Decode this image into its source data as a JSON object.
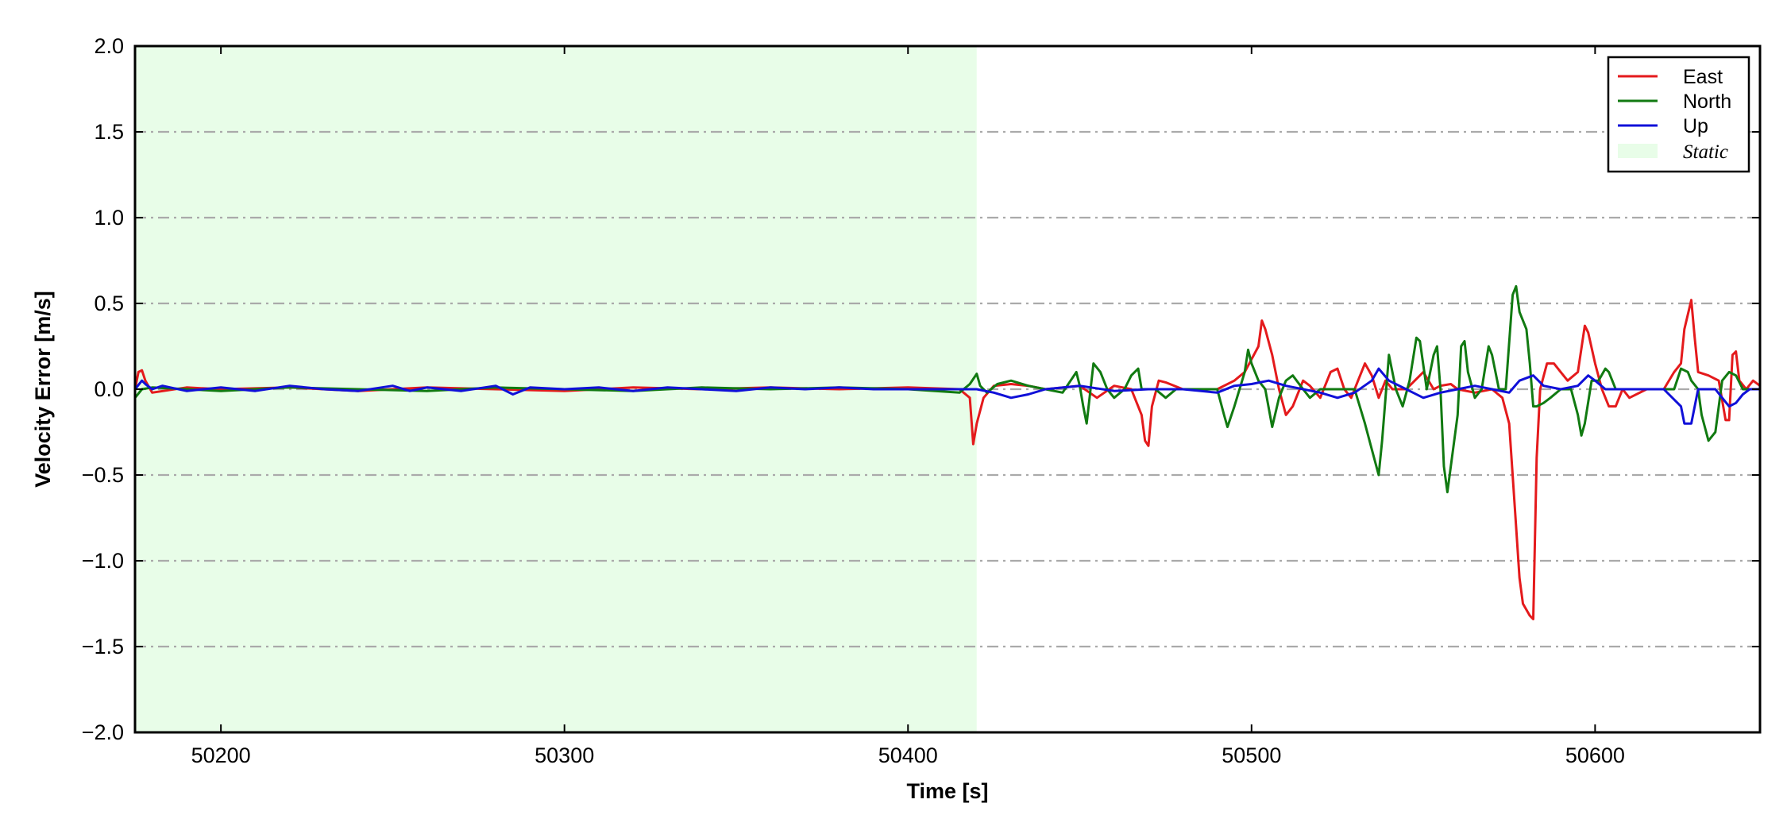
{
  "chart_data": {
    "type": "line",
    "xlabel": "Time [s]",
    "ylabel": "Velocity Error [m/s]",
    "xlim": [
      50175,
      50648
    ],
    "ylim": [
      -2.0,
      2.0
    ],
    "xticks": [
      50200,
      50300,
      50400,
      50500,
      50600
    ],
    "xtick_labels": [
      "50200",
      "50300",
      "50400",
      "50500",
      "50600"
    ],
    "yticks": [
      2.0,
      1.5,
      1.0,
      0.5,
      0.0,
      -0.5,
      -1.0,
      -1.5,
      -2.0
    ],
    "ytick_labels": [
      "2.0",
      "1.5",
      "1.0",
      "0.5",
      "0.0",
      "−0.5",
      "−1.0",
      "−1.5",
      "−2.0"
    ],
    "grid": "horizontal dash-dot",
    "legend_position": "top-right",
    "shaded_region": {
      "name": "Static",
      "x_start": 50175,
      "x_end": 50420,
      "color": "#e8fde8"
    },
    "series": [
      {
        "name": "East",
        "color": "#e41a1c",
        "points": [
          [
            50175,
            0.0
          ],
          [
            50176,
            0.1
          ],
          [
            50177,
            0.11
          ],
          [
            50178,
            0.05
          ],
          [
            50180,
            -0.02
          ],
          [
            50190,
            0.01
          ],
          [
            50200,
            0.0
          ],
          [
            50220,
            0.01
          ],
          [
            50240,
            -0.01
          ],
          [
            50260,
            0.01
          ],
          [
            50280,
            0.0
          ],
          [
            50300,
            -0.01
          ],
          [
            50320,
            0.01
          ],
          [
            50340,
            0.0
          ],
          [
            50360,
            0.01
          ],
          [
            50380,
            0.0
          ],
          [
            50400,
            0.01
          ],
          [
            50415,
            0.0
          ],
          [
            50418,
            -0.05
          ],
          [
            50419,
            -0.32
          ],
          [
            50420,
            -0.2
          ],
          [
            50422,
            -0.05
          ],
          [
            50425,
            0.02
          ],
          [
            50430,
            0.03
          ],
          [
            50435,
            0.02
          ],
          [
            50440,
            0.0
          ],
          [
            50450,
            0.02
          ],
          [
            50455,
            -0.05
          ],
          [
            50460,
            0.02
          ],
          [
            50465,
            0.0
          ],
          [
            50468,
            -0.15
          ],
          [
            50469,
            -0.3
          ],
          [
            50470,
            -0.33
          ],
          [
            50471,
            -0.1
          ],
          [
            50473,
            0.05
          ],
          [
            50475,
            0.04
          ],
          [
            50480,
            0.0
          ],
          [
            50490,
            0.0
          ],
          [
            50495,
            0.05
          ],
          [
            50498,
            0.1
          ],
          [
            50502,
            0.25
          ],
          [
            50503,
            0.4
          ],
          [
            50504,
            0.35
          ],
          [
            50506,
            0.2
          ],
          [
            50508,
            0.0
          ],
          [
            50510,
            -0.15
          ],
          [
            50512,
            -0.1
          ],
          [
            50515,
            0.05
          ],
          [
            50517,
            0.02
          ],
          [
            50520,
            -0.05
          ],
          [
            50523,
            0.1
          ],
          [
            50525,
            0.12
          ],
          [
            50527,
            0.0
          ],
          [
            50529,
            -0.05
          ],
          [
            50531,
            0.05
          ],
          [
            50533,
            0.15
          ],
          [
            50535,
            0.08
          ],
          [
            50537,
            -0.05
          ],
          [
            50539,
            0.05
          ],
          [
            50541,
            0.0
          ],
          [
            50545,
            0.0
          ],
          [
            50550,
            0.1
          ],
          [
            50553,
            0.0
          ],
          [
            50555,
            0.02
          ],
          [
            50558,
            0.03
          ],
          [
            50560,
            0.0
          ],
          [
            50565,
            -0.02
          ],
          [
            50570,
            0.0
          ],
          [
            50573,
            -0.05
          ],
          [
            50575,
            -0.2
          ],
          [
            50577,
            -0.8
          ],
          [
            50578,
            -1.1
          ],
          [
            50579,
            -1.25
          ],
          [
            50581,
            -1.32
          ],
          [
            50582,
            -1.34
          ],
          [
            50583,
            -0.4
          ],
          [
            50584,
            0.0
          ],
          [
            50586,
            0.15
          ],
          [
            50588,
            0.15
          ],
          [
            50590,
            0.1
          ],
          [
            50592,
            0.05
          ],
          [
            50595,
            0.1
          ],
          [
            50597,
            0.37
          ],
          [
            50598,
            0.33
          ],
          [
            50600,
            0.15
          ],
          [
            50602,
            0.0
          ],
          [
            50604,
            -0.1
          ],
          [
            50606,
            -0.1
          ],
          [
            50608,
            0.0
          ],
          [
            50610,
            -0.05
          ],
          [
            50615,
            0.0
          ],
          [
            50620,
            0.0
          ],
          [
            50623,
            0.1
          ],
          [
            50625,
            0.15
          ],
          [
            50626,
            0.35
          ],
          [
            50628,
            0.52
          ],
          [
            50629,
            0.3
          ],
          [
            50630,
            0.1
          ],
          [
            50633,
            0.08
          ],
          [
            50636,
            0.05
          ],
          [
            50638,
            -0.18
          ],
          [
            50639,
            -0.18
          ],
          [
            50640,
            0.2
          ],
          [
            50641,
            0.22
          ],
          [
            50642,
            0.05
          ],
          [
            50644,
            0.0
          ],
          [
            50646,
            0.05
          ],
          [
            50648,
            0.02
          ]
        ]
      },
      {
        "name": "North",
        "color": "#117a11",
        "points": [
          [
            50175,
            -0.05
          ],
          [
            50177,
            0.0
          ],
          [
            50180,
            0.01
          ],
          [
            50200,
            -0.01
          ],
          [
            50220,
            0.01
          ],
          [
            50240,
            0.0
          ],
          [
            50260,
            -0.01
          ],
          [
            50280,
            0.01
          ],
          [
            50300,
            0.0
          ],
          [
            50320,
            -0.01
          ],
          [
            50340,
            0.01
          ],
          [
            50360,
            0.0
          ],
          [
            50380,
            0.01
          ],
          [
            50400,
            0.0
          ],
          [
            50415,
            -0.02
          ],
          [
            50418,
            0.03
          ],
          [
            50420,
            0.09
          ],
          [
            50421,
            0.02
          ],
          [
            50423,
            -0.02
          ],
          [
            50426,
            0.03
          ],
          [
            50430,
            0.05
          ],
          [
            50435,
            0.02
          ],
          [
            50440,
            0.0
          ],
          [
            50445,
            -0.02
          ],
          [
            50449,
            0.1
          ],
          [
            50450,
            0.02
          ],
          [
            50451,
            -0.1
          ],
          [
            50452,
            -0.2
          ],
          [
            50454,
            0.15
          ],
          [
            50456,
            0.1
          ],
          [
            50458,
            0.0
          ],
          [
            50460,
            -0.05
          ],
          [
            50463,
            0.0
          ],
          [
            50465,
            0.08
          ],
          [
            50467,
            0.12
          ],
          [
            50468,
            0.0
          ],
          [
            50472,
            0.0
          ],
          [
            50475,
            -0.05
          ],
          [
            50478,
            0.0
          ],
          [
            50480,
            0.0
          ],
          [
            50490,
            0.0
          ],
          [
            50492,
            -0.15
          ],
          [
            50493,
            -0.22
          ],
          [
            50495,
            -0.1
          ],
          [
            50498,
            0.1
          ],
          [
            50499,
            0.23
          ],
          [
            50500,
            0.15
          ],
          [
            50502,
            0.05
          ],
          [
            50504,
            0.0
          ],
          [
            50506,
            -0.22
          ],
          [
            50508,
            -0.05
          ],
          [
            50510,
            0.05
          ],
          [
            50512,
            0.08
          ],
          [
            50515,
            0.0
          ],
          [
            50517,
            -0.05
          ],
          [
            50520,
            0.0
          ],
          [
            50525,
            0.0
          ],
          [
            50530,
            0.0
          ],
          [
            50533,
            -0.2
          ],
          [
            50535,
            -0.35
          ],
          [
            50537,
            -0.5
          ],
          [
            50538,
            -0.3
          ],
          [
            50540,
            0.2
          ],
          [
            50542,
            0.0
          ],
          [
            50544,
            -0.1
          ],
          [
            50546,
            0.05
          ],
          [
            50548,
            0.3
          ],
          [
            50549,
            0.28
          ],
          [
            50551,
            0.0
          ],
          [
            50553,
            0.2
          ],
          [
            50554,
            0.25
          ],
          [
            50555,
            0.0
          ],
          [
            50556,
            -0.45
          ],
          [
            50557,
            -0.6
          ],
          [
            50558,
            -0.45
          ],
          [
            50560,
            -0.15
          ],
          [
            50561,
            0.25
          ],
          [
            50562,
            0.28
          ],
          [
            50563,
            0.1
          ],
          [
            50565,
            -0.05
          ],
          [
            50567,
            0.0
          ],
          [
            50569,
            0.25
          ],
          [
            50570,
            0.2
          ],
          [
            50572,
            0.0
          ],
          [
            50574,
            0.0
          ],
          [
            50576,
            0.55
          ],
          [
            50577,
            0.6
          ],
          [
            50578,
            0.45
          ],
          [
            50580,
            0.35
          ],
          [
            50581,
            0.15
          ],
          [
            50582,
            -0.1
          ],
          [
            50583,
            -0.1
          ],
          [
            50585,
            -0.08
          ],
          [
            50587,
            -0.05
          ],
          [
            50590,
            0.0
          ],
          [
            50593,
            0.0
          ],
          [
            50595,
            -0.15
          ],
          [
            50596,
            -0.27
          ],
          [
            50597,
            -0.2
          ],
          [
            50599,
            0.05
          ],
          [
            50601,
            0.05
          ],
          [
            50603,
            0.12
          ],
          [
            50604,
            0.1
          ],
          [
            50606,
            0.0
          ],
          [
            50610,
            0.0
          ],
          [
            50620,
            0.0
          ],
          [
            50623,
            0.0
          ],
          [
            50625,
            0.12
          ],
          [
            50627,
            0.1
          ],
          [
            50628,
            0.05
          ],
          [
            50630,
            0.0
          ],
          [
            50631,
            -0.15
          ],
          [
            50633,
            -0.3
          ],
          [
            50635,
            -0.25
          ],
          [
            50637,
            0.05
          ],
          [
            50639,
            0.1
          ],
          [
            50641,
            0.08
          ],
          [
            50643,
            0.0
          ],
          [
            50645,
            0.0
          ],
          [
            50648,
            0.0
          ]
        ]
      },
      {
        "name": "Up",
        "color": "#1010d8",
        "points": [
          [
            50175,
            0.0
          ],
          [
            50177,
            0.05
          ],
          [
            50178,
            0.03
          ],
          [
            50180,
            0.0
          ],
          [
            50183,
            0.02
          ],
          [
            50190,
            -0.01
          ],
          [
            50200,
            0.01
          ],
          [
            50210,
            -0.01
          ],
          [
            50220,
            0.02
          ],
          [
            50230,
            0.0
          ],
          [
            50240,
            -0.01
          ],
          [
            50250,
            0.02
          ],
          [
            50255,
            -0.01
          ],
          [
            50260,
            0.01
          ],
          [
            50270,
            -0.01
          ],
          [
            50280,
            0.02
          ],
          [
            50285,
            -0.03
          ],
          [
            50290,
            0.01
          ],
          [
            50300,
            0.0
          ],
          [
            50310,
            0.01
          ],
          [
            50320,
            -0.01
          ],
          [
            50330,
            0.01
          ],
          [
            50340,
            0.0
          ],
          [
            50350,
            -0.01
          ],
          [
            50360,
            0.01
          ],
          [
            50370,
            0.0
          ],
          [
            50380,
            0.01
          ],
          [
            50390,
            0.0
          ],
          [
            50400,
            0.0
          ],
          [
            50410,
            0.0
          ],
          [
            50420,
            0.0
          ],
          [
            50425,
            -0.02
          ],
          [
            50430,
            -0.05
          ],
          [
            50435,
            -0.03
          ],
          [
            50440,
            0.0
          ],
          [
            50450,
            0.02
          ],
          [
            50460,
            -0.01
          ],
          [
            50470,
            0.0
          ],
          [
            50480,
            0.0
          ],
          [
            50490,
            -0.02
          ],
          [
            50495,
            0.02
          ],
          [
            50500,
            0.03
          ],
          [
            50505,
            0.05
          ],
          [
            50510,
            0.02
          ],
          [
            50515,
            0.0
          ],
          [
            50520,
            -0.02
          ],
          [
            50525,
            -0.05
          ],
          [
            50530,
            -0.02
          ],
          [
            50535,
            0.05
          ],
          [
            50537,
            0.12
          ],
          [
            50540,
            0.05
          ],
          [
            50545,
            0.0
          ],
          [
            50550,
            -0.05
          ],
          [
            50555,
            -0.02
          ],
          [
            50560,
            0.0
          ],
          [
            50565,
            0.02
          ],
          [
            50570,
            0.0
          ],
          [
            50575,
            -0.02
          ],
          [
            50578,
            0.05
          ],
          [
            50582,
            0.08
          ],
          [
            50585,
            0.02
          ],
          [
            50590,
            0.0
          ],
          [
            50595,
            0.02
          ],
          [
            50598,
            0.08
          ],
          [
            50600,
            0.05
          ],
          [
            50603,
            0.0
          ],
          [
            50610,
            0.0
          ],
          [
            50620,
            0.0
          ],
          [
            50625,
            -0.1
          ],
          [
            50626,
            -0.2
          ],
          [
            50628,
            -0.2
          ],
          [
            50630,
            0.0
          ],
          [
            50635,
            0.0
          ],
          [
            50637,
            -0.05
          ],
          [
            50639,
            -0.1
          ],
          [
            50641,
            -0.08
          ],
          [
            50643,
            -0.03
          ],
          [
            50645,
            0.0
          ],
          [
            50648,
            0.0
          ]
        ]
      }
    ]
  }
}
